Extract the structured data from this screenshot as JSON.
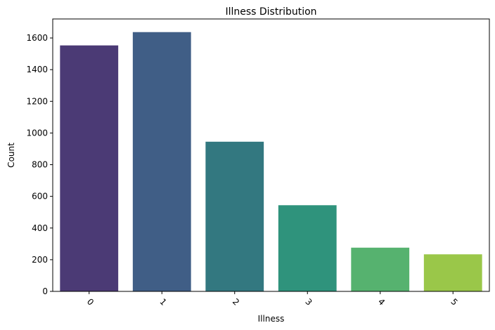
{
  "chart_data": {
    "type": "bar",
    "title": "Illness Distribution",
    "xlabel": "Illness",
    "ylabel": "Count",
    "categories": [
      "0",
      "1",
      "2",
      "3",
      "4",
      "5"
    ],
    "values": [
      1553,
      1637,
      945,
      544,
      276,
      234
    ],
    "colors": [
      "#4b3a75",
      "#405e86",
      "#337880",
      "#2f937c",
      "#56b26f",
      "#9ac749"
    ],
    "ylim": [
      0,
      1720
    ],
    "yticks": [
      0,
      200,
      400,
      600,
      800,
      1000,
      1200,
      1400,
      1600
    ],
    "xtick_rotation": 45,
    "grid": false,
    "legend": false
  }
}
